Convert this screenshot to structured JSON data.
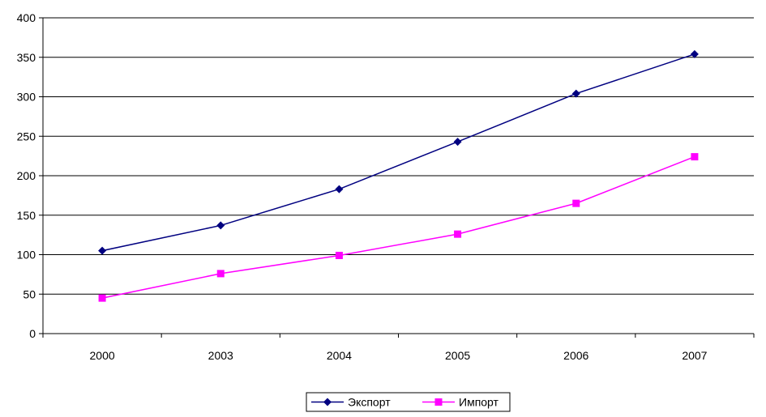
{
  "chart_data": {
    "type": "line",
    "title": "",
    "xlabel": "",
    "ylabel": "",
    "categories": [
      "2000",
      "2003",
      "2004",
      "2005",
      "2006",
      "2007"
    ],
    "ylim": [
      0,
      400
    ],
    "yticks": [
      "0",
      "50",
      "100",
      "150",
      "200",
      "250",
      "300",
      "350",
      "400"
    ],
    "grid": "horizontal",
    "legend_position": "bottom",
    "series": [
      {
        "name": "Экспорт",
        "values": [
          105,
          137,
          183,
          243,
          304,
          354
        ],
        "color": "#000080",
        "marker": "diamond"
      },
      {
        "name": "Импорт",
        "values": [
          45,
          76,
          99,
          126,
          165,
          224
        ],
        "color": "#ff00ff",
        "marker": "square"
      }
    ]
  }
}
